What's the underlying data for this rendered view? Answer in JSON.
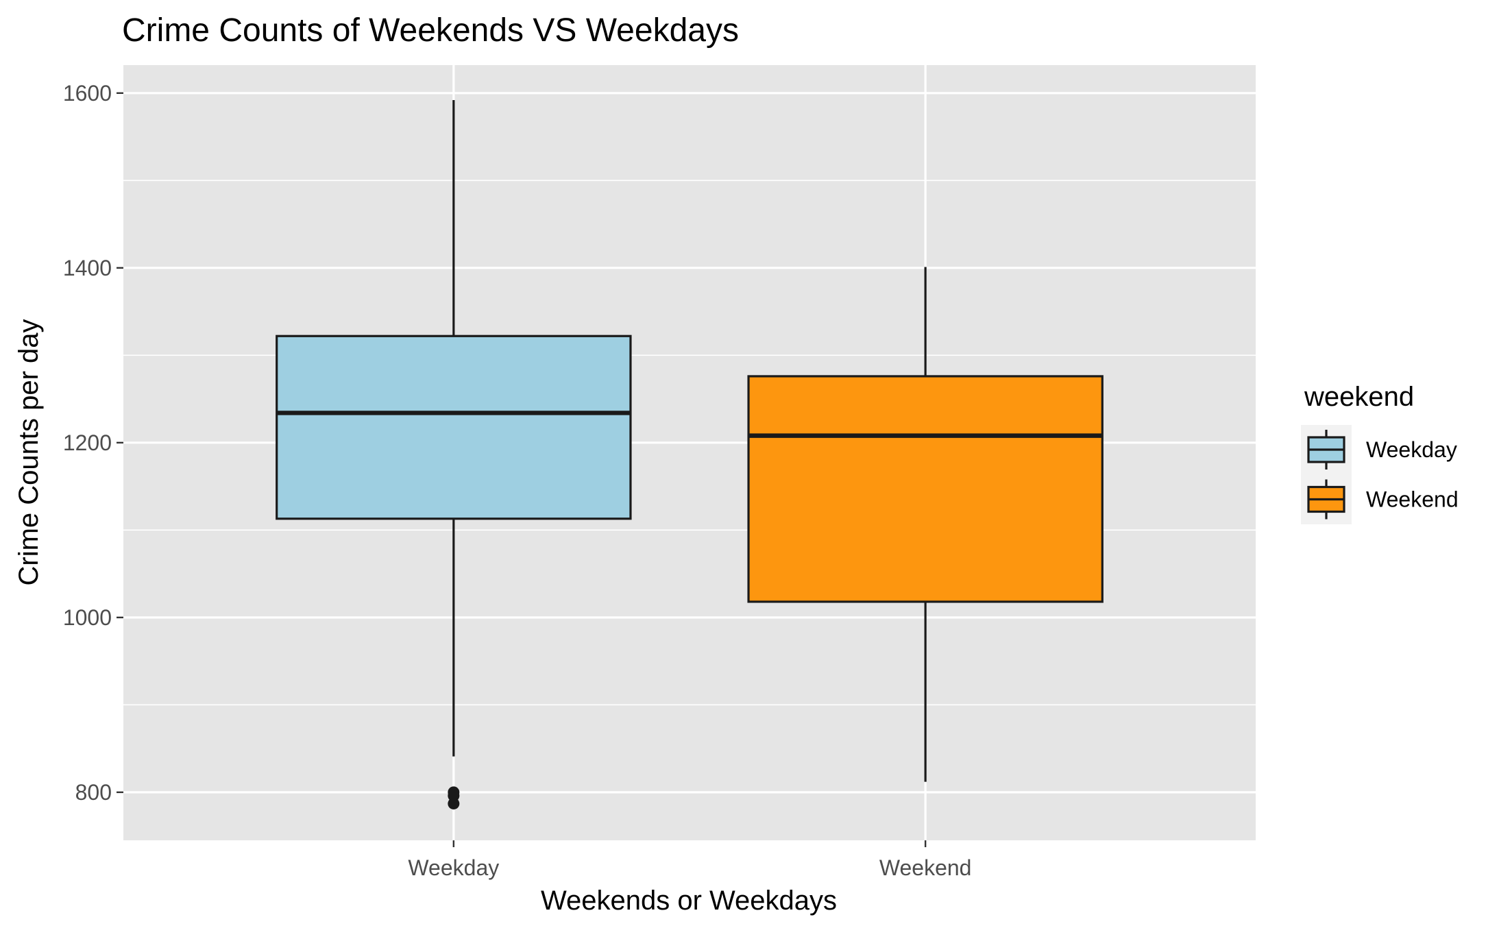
{
  "chart_data": {
    "type": "boxplot",
    "title": "Crime Counts of Weekends VS Weekdays",
    "xlabel": "Weekends or Weekdays",
    "ylabel": "Crime Counts per day",
    "ylim": [
      745,
      1632
    ],
    "y_ticks": [
      800,
      1000,
      1200,
      1400,
      1600
    ],
    "y_minor_ticks": [
      900,
      1100,
      1300,
      1500
    ],
    "grid": true,
    "legend_position": "right",
    "legend_title": "weekend",
    "categories": [
      "Weekday",
      "Weekend"
    ],
    "boxes": [
      {
        "category": "Weekday",
        "whisker_low": 841,
        "q1": 1113,
        "median": 1234,
        "q3": 1322,
        "whisker_high": 1592,
        "outliers": [
          800,
          796,
          787
        ],
        "fill": "#9ecfe1"
      },
      {
        "category": "Weekend",
        "whisker_low": 812,
        "q1": 1018,
        "median": 1208,
        "q3": 1276,
        "whisker_high": 1401,
        "outliers": [],
        "fill": "#fd960f"
      }
    ],
    "legend": [
      {
        "label": "Weekday",
        "fill": "#9ecfe1"
      },
      {
        "label": "Weekend",
        "fill": "#fd960f"
      }
    ]
  }
}
